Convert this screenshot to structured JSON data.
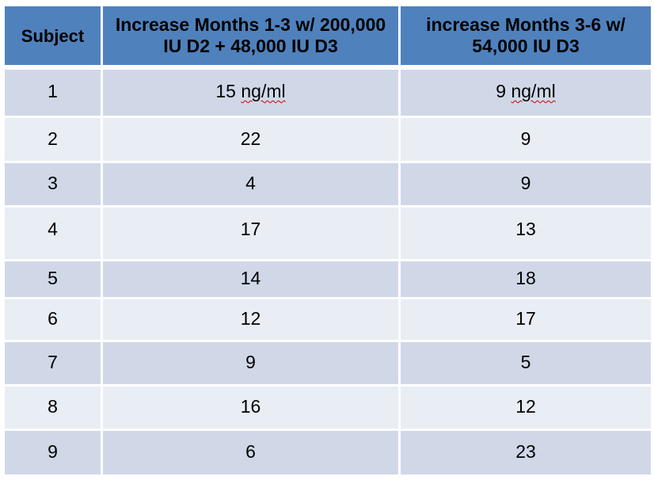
{
  "table": {
    "headers": {
      "subject": "Subject",
      "col2": "Increase  Months 1-3 w/ 200,000 IU D2 + 48,000 IU D3",
      "col3": "increase Months 3-6 w/ 54,000 IU D3"
    },
    "rows": [
      {
        "subject": "1",
        "col2_value": "15",
        "col2_unit": "ng/ml",
        "col3_value": "9",
        "col3_unit": "ng/ml"
      },
      {
        "subject": "2",
        "col2_value": "22",
        "col3_value": "9"
      },
      {
        "subject": "3",
        "col2_value": "4",
        "col3_value": "9"
      },
      {
        "subject": "4",
        "col2_value": "17",
        "col3_value": "13"
      },
      {
        "subject": "5",
        "col2_value": "14",
        "col3_value": "18"
      },
      {
        "subject": "6",
        "col2_value": "12",
        "col3_value": "17"
      },
      {
        "subject": "7",
        "col2_value": "9",
        "col3_value": "5"
      },
      {
        "subject": "8",
        "col2_value": "16",
        "col3_value": "12"
      },
      {
        "subject": "9",
        "col2_value": "6",
        "col3_value": "23"
      }
    ]
  },
  "colors": {
    "header": "#4f81bd",
    "row_dark": "#d0d8e8",
    "row_light": "#e9edf4"
  }
}
